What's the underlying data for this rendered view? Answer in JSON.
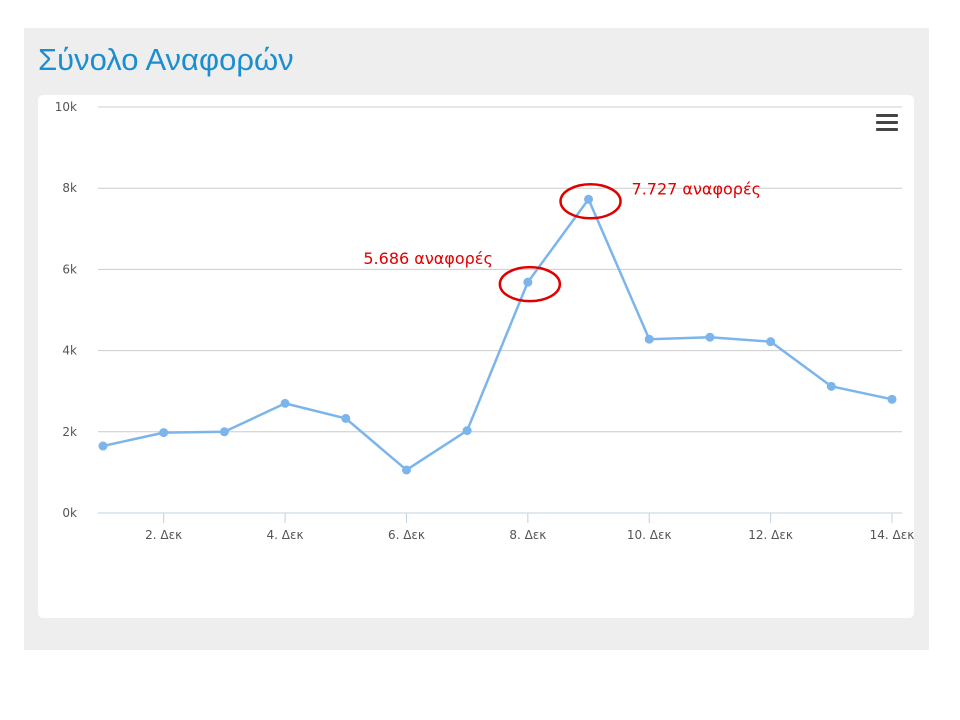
{
  "page": {
    "title": "Σύνολο Αναφορών"
  },
  "toolbar": {
    "menu_icon": "hamburger-menu-icon"
  },
  "colors": {
    "title": "#1a8ed0",
    "series": "#7cb5ec",
    "annotation": "#e00000",
    "grid": "#cccccc"
  },
  "chart_data": {
    "type": "line",
    "title": "Σύνολο Αναφορών",
    "xlabel": "",
    "ylabel": "",
    "ylim": [
      0,
      10000
    ],
    "yticks": [
      0,
      2000,
      4000,
      6000,
      8000,
      10000
    ],
    "ytick_labels": [
      "0k",
      "2k",
      "4k",
      "6k",
      "8k",
      "10k"
    ],
    "x": [
      1,
      2,
      3,
      4,
      5,
      6,
      7,
      8,
      9,
      10,
      11,
      12,
      13,
      14
    ],
    "xticks": [
      2,
      4,
      6,
      8,
      10,
      12,
      14
    ],
    "xtick_labels": [
      "2. Δεκ",
      "4. Δεκ",
      "6. Δεκ",
      "8. Δεκ",
      "10. Δεκ",
      "12. Δεκ",
      "14. Δεκ"
    ],
    "grid": true,
    "legend": "none",
    "series": [
      {
        "values": [
          1650,
          1980,
          2000,
          2700,
          2330,
          1060,
          2030,
          5686,
          7727,
          4280,
          4330,
          4220,
          3120,
          2800
        ]
      }
    ],
    "annotations": [
      {
        "x": 8,
        "value": 5686,
        "text": "5.686 αναφορές"
      },
      {
        "x": 9,
        "value": 7727,
        "text": "7.727 αναφορές"
      }
    ]
  }
}
